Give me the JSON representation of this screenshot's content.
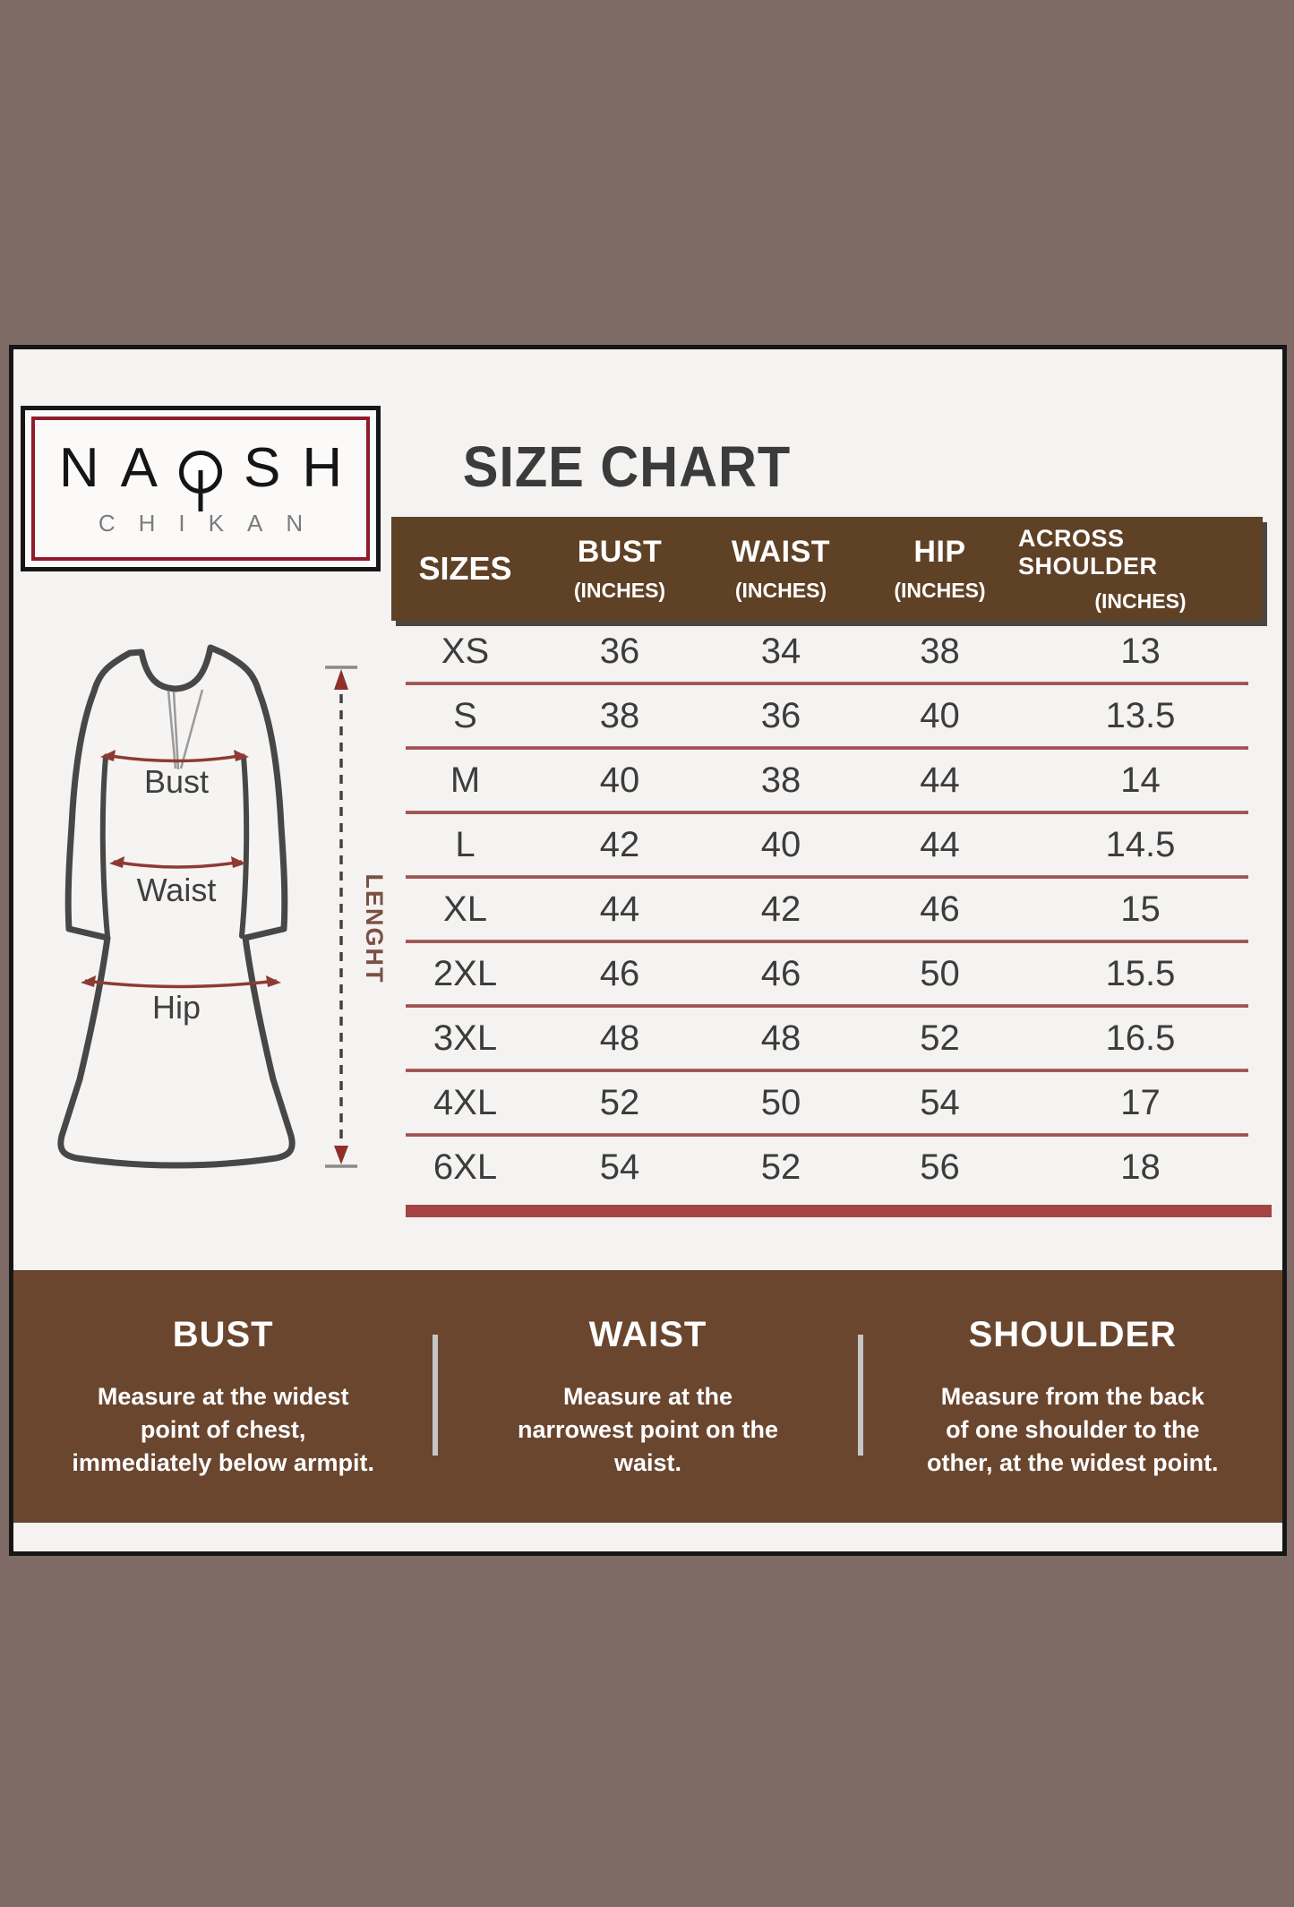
{
  "title": "SIZE CHART",
  "logo": {
    "brand": "NAQSH",
    "subtitle": "CHIKAN"
  },
  "size_table": {
    "sizes_header": "SIZES",
    "columns": [
      {
        "label": "BUST",
        "unit": "(INCHES)"
      },
      {
        "label": "WAIST",
        "unit": "(INCHES)"
      },
      {
        "label": "HIP",
        "unit": "(INCHES)"
      },
      {
        "label": "ACROSS SHOULDER",
        "unit": "(INCHES)"
      }
    ],
    "rows": [
      {
        "size": "XS",
        "bust": "36",
        "waist": "34",
        "hip": "38",
        "across_shoulder": "13"
      },
      {
        "size": "S",
        "bust": "38",
        "waist": "36",
        "hip": "40",
        "across_shoulder": "13.5"
      },
      {
        "size": "M",
        "bust": "40",
        "waist": "38",
        "hip": "44",
        "across_shoulder": "14"
      },
      {
        "size": "L",
        "bust": "42",
        "waist": "40",
        "hip": "44",
        "across_shoulder": "14.5"
      },
      {
        "size": "XL",
        "bust": "44",
        "waist": "42",
        "hip": "46",
        "across_shoulder": "15"
      },
      {
        "size": "2XL",
        "bust": "46",
        "waist": "46",
        "hip": "50",
        "across_shoulder": "15.5"
      },
      {
        "size": "3XL",
        "bust": "48",
        "waist": "48",
        "hip": "52",
        "across_shoulder": "16.5"
      },
      {
        "size": "4XL",
        "bust": "52",
        "waist": "50",
        "hip": "54",
        "across_shoulder": "17"
      },
      {
        "size": "6XL",
        "bust": "54",
        "waist": "52",
        "hip": "56",
        "across_shoulder": "18"
      }
    ]
  },
  "diagram": {
    "bust_label": "Bust",
    "waist_label": "Waist",
    "hip_label": "Hip",
    "length_label": "LENGHT"
  },
  "guide": {
    "sections": [
      {
        "heading": "BUST",
        "lines": [
          "Measure at the widest",
          "point of chest,",
          "immediately below armpit."
        ]
      },
      {
        "heading": "WAIST",
        "lines": [
          "Measure at the",
          "narrowest point on the",
          "waist."
        ]
      },
      {
        "heading": "SHOULDER",
        "lines": [
          "Measure from the back",
          "of one shoulder to the",
          "other, at the widest point."
        ]
      }
    ]
  },
  "colors": {
    "page_bg": "#7e6b66",
    "card_bg": "#f4f3f1",
    "table_header_brown": "#5f4126",
    "band_brown": "#6a462f",
    "separator_maroon": "#a25a5a",
    "bottom_bar_maroon": "#a34343",
    "logo_border_red": "#8e1c2b",
    "arrow_maroon": "#8e3a33",
    "text_dark": "#3c3c3c"
  }
}
